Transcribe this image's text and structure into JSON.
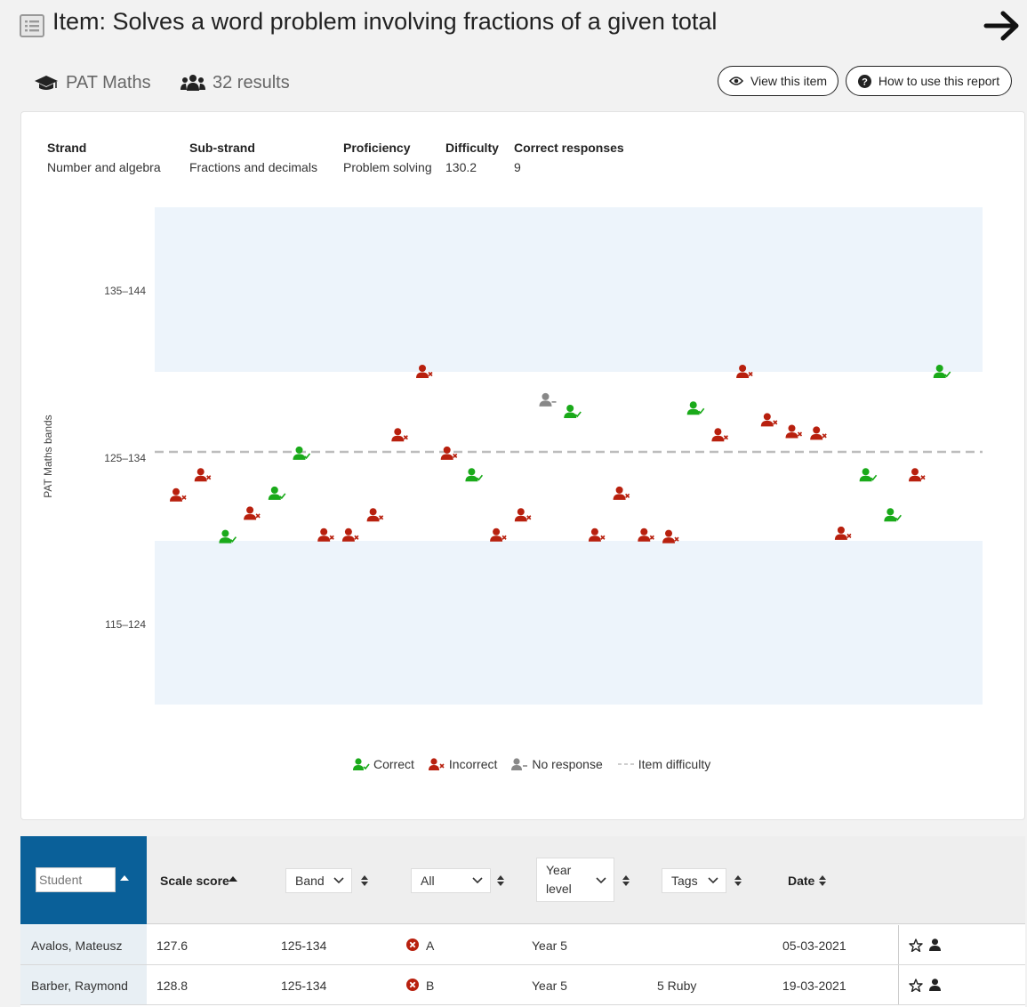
{
  "header": {
    "title": "Item: Solves a word problem involving fractions of a given total",
    "subject": "PAT Maths",
    "results": "32 results",
    "view_item": "View this item",
    "how_to": "How to use this report"
  },
  "item_info": [
    {
      "label": "Strand",
      "value": "Number and algebra"
    },
    {
      "label": "Sub-strand",
      "value": "Fractions and decimals"
    },
    {
      "label": "Proficiency",
      "value": "Problem solving"
    },
    {
      "label": "Difficulty",
      "value": "130.2"
    },
    {
      "label": "Correct responses",
      "value": "9"
    }
  ],
  "colors": {
    "correct": "#1aaa1a",
    "incorrect": "#b8200e",
    "no_response": "#888888",
    "band_fill": "#edf4fb",
    "accent": "#0a6099"
  },
  "chart_data": {
    "type": "scatter",
    "ylabel": "PAT Maths bands",
    "bands": [
      "135–144",
      "125–134",
      "115–124"
    ],
    "item_difficulty": 130.2,
    "legend": [
      "Correct",
      "Incorrect",
      "No response",
      "Item difficulty"
    ],
    "points": [
      {
        "student": 1,
        "score": 127.6,
        "response": "incorrect"
      },
      {
        "student": 2,
        "score": 128.8,
        "response": "incorrect"
      },
      {
        "student": 3,
        "score": 125.1,
        "response": "correct"
      },
      {
        "student": 4,
        "score": 126.5,
        "response": "incorrect"
      },
      {
        "student": 5,
        "score": 127.7,
        "response": "correct"
      },
      {
        "student": 6,
        "score": 130.1,
        "response": "correct"
      },
      {
        "student": 7,
        "score": 125.2,
        "response": "incorrect"
      },
      {
        "student": 8,
        "score": 125.2,
        "response": "incorrect"
      },
      {
        "student": 9,
        "score": 126.4,
        "response": "incorrect"
      },
      {
        "student": 10,
        "score": 131.2,
        "response": "incorrect"
      },
      {
        "student": 11,
        "score": 135.0,
        "response": "incorrect"
      },
      {
        "student": 12,
        "score": 130.1,
        "response": "incorrect"
      },
      {
        "student": 13,
        "score": 128.8,
        "response": "correct"
      },
      {
        "student": 14,
        "score": 125.2,
        "response": "incorrect"
      },
      {
        "student": 15,
        "score": 126.4,
        "response": "incorrect"
      },
      {
        "student": 16,
        "score": 133.3,
        "response": "no_response"
      },
      {
        "student": 17,
        "score": 132.6,
        "response": "correct"
      },
      {
        "student": 18,
        "score": 125.2,
        "response": "incorrect"
      },
      {
        "student": 19,
        "score": 127.7,
        "response": "incorrect"
      },
      {
        "student": 20,
        "score": 125.2,
        "response": "incorrect"
      },
      {
        "student": 21,
        "score": 125.1,
        "response": "incorrect"
      },
      {
        "student": 22,
        "score": 132.8,
        "response": "correct"
      },
      {
        "student": 23,
        "score": 131.2,
        "response": "incorrect"
      },
      {
        "student": 24,
        "score": 135.0,
        "response": "incorrect"
      },
      {
        "student": 25,
        "score": 132.1,
        "response": "incorrect"
      },
      {
        "student": 26,
        "score": 131.4,
        "response": "incorrect"
      },
      {
        "student": 27,
        "score": 131.3,
        "response": "incorrect"
      },
      {
        "student": 28,
        "score": 125.3,
        "response": "incorrect"
      },
      {
        "student": 29,
        "score": 128.8,
        "response": "correct"
      },
      {
        "student": 30,
        "score": 126.4,
        "response": "correct"
      },
      {
        "student": 31,
        "score": 128.8,
        "response": "incorrect"
      },
      {
        "student": 32,
        "score": 135.0,
        "response": "correct"
      }
    ]
  },
  "table": {
    "student_placeholder": "Student",
    "headers": {
      "scale_score": "Scale score",
      "band": "Band",
      "all": "All",
      "year_level_1": "Year",
      "year_level_2": "level",
      "tags": "Tags",
      "date": "Date"
    },
    "rows": [
      {
        "name": "Avalos, Mateusz",
        "score": "127.6",
        "band": "125-134",
        "answer": "A",
        "year": "Year 5",
        "tags": "",
        "date": "05-03-2021"
      },
      {
        "name": "Barber, Raymond",
        "score": "128.8",
        "band": "125-134",
        "answer": "B",
        "year": "Year 5",
        "tags": "5 Ruby",
        "date": "19-03-2021"
      }
    ]
  }
}
